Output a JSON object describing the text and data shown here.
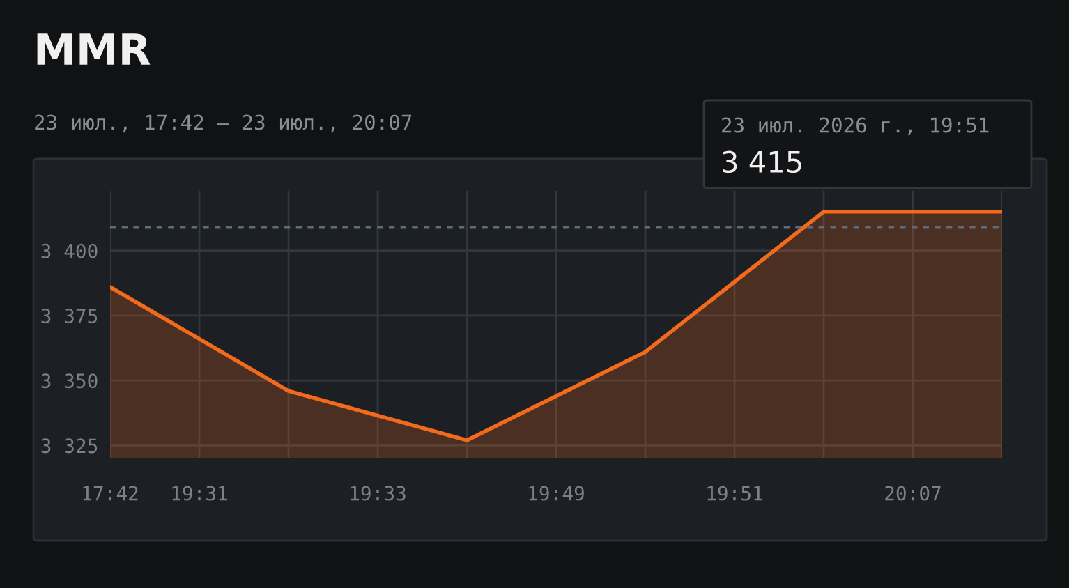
{
  "chart_data": {
    "type": "area",
    "title": "MMR",
    "subtitle": "23 июл., 17:42 – 23 июл., 20:07",
    "categories": [
      "17:42",
      "19:31",
      null,
      "19:33",
      null,
      "19:49",
      null,
      "19:51",
      null,
      "20:07",
      null
    ],
    "series": [
      {
        "color": "#f26a1b",
        "values": [
          3386,
          null,
          3346,
          null,
          3327,
          null,
          3361,
          null,
          3415,
          null,
          3415
        ]
      }
    ],
    "ylim": [
      3320,
      3423
    ],
    "yticks": [
      {
        "value": 3325,
        "label": "3 325"
      },
      {
        "value": 3350,
        "label": "3 350"
      },
      {
        "value": 3375,
        "label": "3 375"
      },
      {
        "value": 3400,
        "label": "3 400"
      }
    ],
    "ref_lines": [
      {
        "axis": "y",
        "value": 3409,
        "color": "#5d6b7a",
        "line_style": "dashed"
      }
    ],
    "annotations": [
      "23 июл. 2026 г., 19:51",
      "3 415"
    ],
    "grid": true,
    "legend": false,
    "marker": "none",
    "line_style": "solid"
  }
}
